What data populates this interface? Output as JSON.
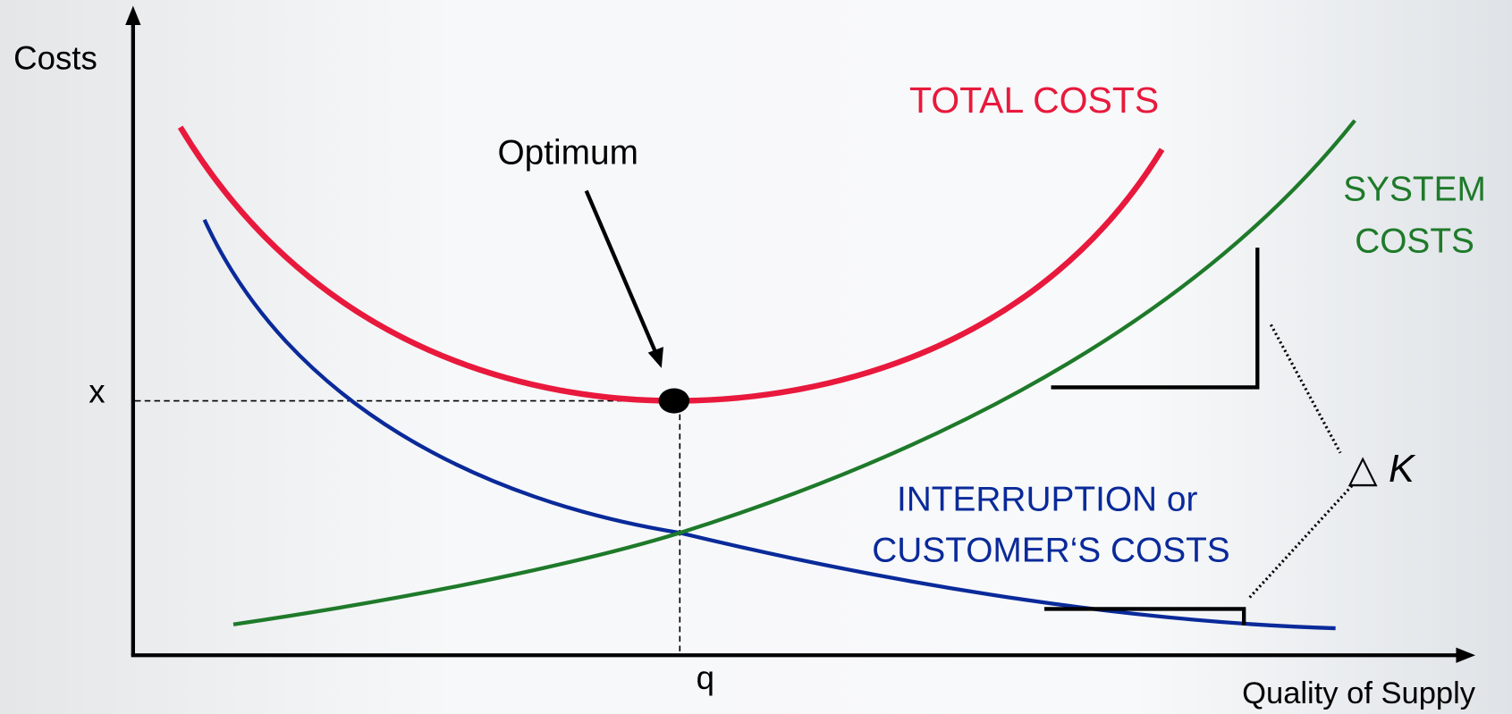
{
  "axes": {
    "y_label": "Costs",
    "x_label": "Quality of Supply",
    "x_mark": "x",
    "q_mark": "q"
  },
  "optimum": {
    "label": "Optimum"
  },
  "curves": {
    "total": {
      "label": "TOTAL COSTS"
    },
    "system": {
      "label": [
        "SYSTEM",
        "COSTS"
      ]
    },
    "interruption": {
      "label": [
        "INTERRUPTION or",
        "CUSTOMER‘S COSTS"
      ]
    }
  },
  "delta": {
    "symbol": "△",
    "variable": "K"
  }
}
